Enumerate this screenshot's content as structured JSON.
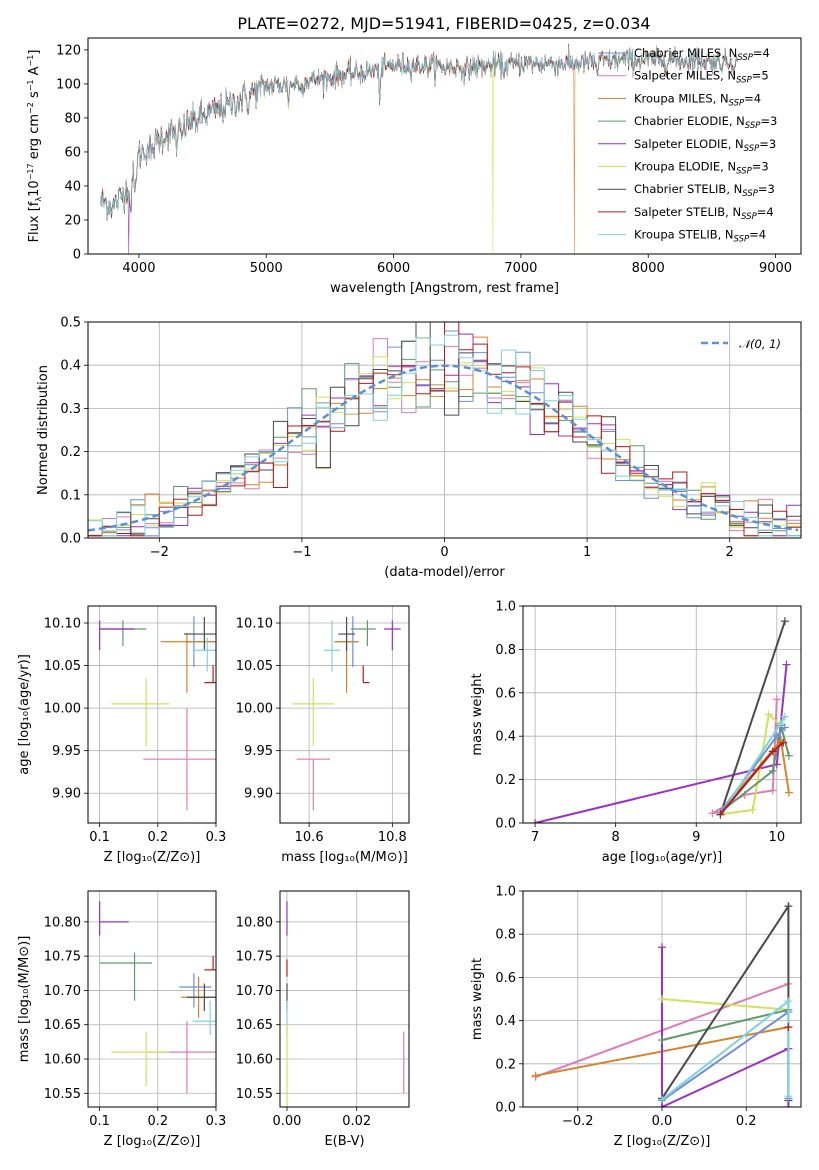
{
  "figure_title": "PLATE=0272, MJD=51941, FIBERID=0425, z=0.034",
  "colors": {
    "chabrier_miles": "#6f8fd8",
    "salpeter_miles": "#e07ab8",
    "kroupa_miles": "#d9822b",
    "chabrier_elodie": "#5f9a6a",
    "salpeter_elodie": "#9b30c2",
    "kroupa_elodie": "#cfe25a",
    "chabrier_stelib": "#4a4a4a",
    "salpeter_stelib": "#b31b1b",
    "kroupa_stelib": "#7fd3e0",
    "normal_curve": "#5b8fd6",
    "grid": "#b0b0b0"
  },
  "chart_data": [
    {
      "id": "spectrum",
      "type": "line",
      "title": "PLATE=0272, MJD=51941, FIBERID=0425, z=0.034",
      "xlabel": "wavelength [Angstrom, rest frame]",
      "ylabel": "Flux [fλ10⁻¹⁷ erg cm⁻² s⁻¹ A⁻¹]",
      "ylabel_parts": {
        "pre": "Flux [f",
        "sub1": "λ",
        "mid": "10",
        "sup1": "−17",
        "mid2": " erg cm",
        "sup2": "−2",
        "mid3": " s",
        "sup3": "−1",
        "mid4": " A",
        "sup4": "−1",
        "post": "]"
      },
      "xlim": [
        3600,
        9200
      ],
      "ylim": [
        0,
        127
      ],
      "xticks": [
        4000,
        5000,
        6000,
        7000,
        8000,
        9000
      ],
      "yticks": [
        0,
        20,
        40,
        60,
        80,
        100,
        120
      ],
      "grid": false,
      "legend_position": "right",
      "continuum": {
        "x": [
          3700,
          3800,
          3900,
          3950,
          4000,
          4100,
          4200,
          4300,
          4400,
          4500,
          4600,
          4800,
          5000,
          5200,
          5400,
          5600,
          5800,
          6000,
          6200,
          6400,
          6600,
          6800,
          7000,
          7200,
          7400,
          7600,
          7800,
          8000,
          8200,
          8400,
          8600,
          8700
        ],
        "y": [
          31,
          28,
          38,
          46,
          58,
          64,
          70,
          72,
          77,
          81,
          84,
          91,
          99,
          100,
          103,
          105,
          107,
          111,
          111,
          110,
          110,
          111,
          112,
          112,
          112,
          113,
          114,
          114,
          114,
          114,
          113,
          113
        ]
      },
      "dropouts": [
        {
          "series": "Salpeter ELODIE",
          "x": 3920
        },
        {
          "series": "Kroupa ELODIE",
          "x": 6780
        },
        {
          "series": "Kroupa MILES",
          "x": 7420
        }
      ],
      "series": [
        {
          "name": "Chabrier MILES",
          "nssp": "4",
          "color": "#6f8fd8"
        },
        {
          "name": "Salpeter MILES",
          "nssp": "5",
          "color": "#e07ab8"
        },
        {
          "name": "Kroupa MILES",
          "nssp": "4",
          "color": "#d9822b"
        },
        {
          "name": "Chabrier ELODIE",
          "nssp": "3",
          "color": "#5f9a6a"
        },
        {
          "name": "Salpeter ELODIE",
          "nssp": "3",
          "color": "#9b30c2"
        },
        {
          "name": "Kroupa ELODIE",
          "nssp": "3",
          "color": "#cfe25a"
        },
        {
          "name": "Chabrier STELIB",
          "nssp": "3",
          "color": "#4a4a4a"
        },
        {
          "name": "Salpeter STELIB",
          "nssp": "4",
          "color": "#b31b1b"
        },
        {
          "name": "Kroupa STELIB",
          "nssp": "4",
          "color": "#7fd3e0"
        }
      ],
      "legend_prefix_N": "N",
      "legend_sub": "SSP"
    },
    {
      "id": "residuals",
      "type": "histogram",
      "xlabel": "(data-model)/error",
      "ylabel": "Normed distribution",
      "xlim": [
        -2.5,
        2.5
      ],
      "ylim": [
        0,
        0.5
      ],
      "xticks": [
        -2,
        -1,
        0,
        1,
        2
      ],
      "yticks": [
        0.0,
        0.1,
        0.2,
        0.3,
        0.4,
        0.5
      ],
      "grid": true,
      "legend": "𝒩(0, 1)",
      "legend_position": "top-right",
      "bin_width": 0.1,
      "normal": {
        "mean": 0,
        "sigma": 1
      }
    },
    {
      "id": "age_vs_Z",
      "type": "errorbar",
      "xlabel": "Z [log₁₀(Z/Z⊙)]",
      "ylabel": "age  [log₁₀(age/yr)]",
      "xlim": [
        0.08,
        0.3
      ],
      "ylim": [
        9.865,
        10.12
      ],
      "xticks": [
        0.1,
        0.2,
        0.3
      ],
      "yticks": [
        9.9,
        9.95,
        10.0,
        10.05,
        10.1
      ],
      "grid": true,
      "points": [
        {
          "series": "Chabrier MILES",
          "x": 0.262,
          "y": 10.078,
          "xerr": [
            0.015,
            0.04
          ],
          "yerr": [
            0.03,
            0.03
          ]
        },
        {
          "series": "Salpeter MILES",
          "x": 0.25,
          "y": 9.94,
          "xerr": [
            0.075,
            0.05
          ],
          "yerr": [
            0.06,
            0.06
          ]
        },
        {
          "series": "Kroupa MILES",
          "x": 0.25,
          "y": 10.078,
          "xerr": [
            0.045,
            0.05
          ],
          "yerr": [
            0.06,
            0.01
          ]
        },
        {
          "series": "Chabrier ELODIE",
          "x": 0.14,
          "y": 10.093,
          "xerr": [
            0.04,
            0.04
          ],
          "yerr": [
            0.02,
            0.01
          ]
        },
        {
          "series": "Salpeter ELODIE",
          "x": 0.1,
          "y": 10.093,
          "xerr": [
            0.0,
            0.06
          ],
          "yerr": [
            0.025,
            0.01
          ]
        },
        {
          "series": "Kroupa ELODIE",
          "x": 0.18,
          "y": 10.005,
          "xerr": [
            0.06,
            0.04
          ],
          "yerr": [
            0.05,
            0.03
          ]
        },
        {
          "series": "Chabrier STELIB",
          "x": 0.28,
          "y": 10.087,
          "xerr": [
            0.035,
            0.02
          ],
          "yerr": [
            0.02,
            0.02
          ]
        },
        {
          "series": "Salpeter STELIB",
          "x": 0.295,
          "y": 10.03,
          "xerr": [
            0.015,
            0.005
          ],
          "yerr": [
            0.0,
            0.02
          ]
        },
        {
          "series": "Kroupa STELIB",
          "x": 0.285,
          "y": 10.068,
          "xerr": [
            0.025,
            0.015
          ],
          "yerr": [
            0.025,
            0.015
          ]
        }
      ]
    },
    {
      "id": "age_vs_mass",
      "type": "errorbar",
      "xlabel": "mass [log₁₀(M/M⊙)]",
      "ylabel": "",
      "xlim": [
        10.53,
        10.84
      ],
      "ylim": [
        9.865,
        10.12
      ],
      "xticks": [
        10.6,
        10.8
      ],
      "yticks": [
        9.9,
        9.95,
        10.0,
        10.05,
        10.1
      ],
      "grid": true,
      "points": [
        {
          "series": "Chabrier MILES",
          "x": 10.705,
          "y": 10.078,
          "xerr": [
            0.04,
            0.01
          ],
          "yerr": [
            0.03,
            0.03
          ]
        },
        {
          "series": "Salpeter MILES",
          "x": 10.61,
          "y": 9.94,
          "xerr": [
            0.04,
            0.04
          ],
          "yerr": [
            0.06,
            0.0
          ]
        },
        {
          "series": "Kroupa MILES",
          "x": 10.69,
          "y": 10.078,
          "xerr": [
            0.03,
            0.03
          ],
          "yerr": [
            0.06,
            0.01
          ]
        },
        {
          "series": "Chabrier ELODIE",
          "x": 10.74,
          "y": 10.093,
          "xerr": [
            0.04,
            0.02
          ],
          "yerr": [
            0.02,
            0.01
          ]
        },
        {
          "series": "Salpeter ELODIE",
          "x": 10.8,
          "y": 10.093,
          "xerr": [
            0.02,
            0.02
          ],
          "yerr": [
            0.025,
            0.01
          ]
        },
        {
          "series": "Kroupa ELODIE",
          "x": 10.61,
          "y": 10.005,
          "xerr": [
            0.05,
            0.05
          ],
          "yerr": [
            0.05,
            0.03
          ]
        },
        {
          "series": "Chabrier STELIB",
          "x": 10.69,
          "y": 10.087,
          "xerr": [
            0.02,
            0.02
          ],
          "yerr": [
            0.02,
            0.02
          ]
        },
        {
          "series": "Salpeter STELIB",
          "x": 10.73,
          "y": 10.03,
          "xerr": [
            0.0,
            0.015
          ],
          "yerr": [
            0.0,
            0.02
          ]
        },
        {
          "series": "Kroupa STELIB",
          "x": 10.655,
          "y": 10.068,
          "xerr": [
            0.02,
            0.02
          ],
          "yerr": [
            0.025,
            0.035
          ]
        }
      ]
    },
    {
      "id": "massweight_vs_age",
      "type": "line",
      "xlabel": "age  [log₁₀(age/yr)]",
      "ylabel": "mass weight",
      "xlim": [
        6.85,
        10.3
      ],
      "ylim": [
        0,
        1.0
      ],
      "xticks": [
        7,
        8,
        9,
        10
      ],
      "yticks": [
        0.0,
        0.2,
        0.4,
        0.6,
        0.8,
        1.0
      ],
      "grid": true,
      "series": [
        {
          "name": "Salpeter ELODIE",
          "x": [
            7.0,
            10.0,
            10.12
          ],
          "y": [
            0.0,
            0.27,
            0.73
          ]
        },
        {
          "name": "Chabrier STELIB",
          "x": [
            9.3,
            10.1
          ],
          "y": [
            0.04,
            0.93
          ]
        },
        {
          "name": "Salpeter MILES",
          "x": [
            9.2,
            9.6,
            9.95,
            10.0
          ],
          "y": [
            0.045,
            0.13,
            0.15,
            0.57
          ]
        },
        {
          "name": "Kroupa ELODIE",
          "x": [
            9.3,
            9.7,
            9.9,
            10.05
          ],
          "y": [
            0.04,
            0.06,
            0.5,
            0.45
          ]
        },
        {
          "name": "Chabrier ELODIE",
          "x": [
            9.3,
            9.95,
            10.05,
            10.15
          ],
          "y": [
            0.05,
            0.24,
            0.45,
            0.31
          ]
        },
        {
          "name": "Kroupa MILES",
          "x": [
            9.3,
            10.05,
            10.15
          ],
          "y": [
            0.05,
            0.38,
            0.14
          ]
        },
        {
          "name": "Chabrier MILES",
          "x": [
            9.3,
            10.0,
            10.1
          ],
          "y": [
            0.05,
            0.4,
            0.44
          ]
        },
        {
          "name": "Kroupa STELIB",
          "x": [
            9.3,
            10.05,
            10.1
          ],
          "y": [
            0.035,
            0.46,
            0.49
          ]
        },
        {
          "name": "Salpeter STELIB",
          "x": [
            9.3,
            9.95,
            10.08
          ],
          "y": [
            0.04,
            0.33,
            0.37
          ]
        }
      ]
    },
    {
      "id": "mass_vs_Z",
      "type": "errorbar",
      "xlabel": "Z [log₁₀(Z/Z⊙)]",
      "ylabel": "mass [log₁₀(M/M⊙)]",
      "xlim": [
        0.08,
        0.3
      ],
      "ylim": [
        10.53,
        10.845
      ],
      "xticks": [
        0.1,
        0.2,
        0.3
      ],
      "yticks": [
        10.55,
        10.6,
        10.65,
        10.7,
        10.75,
        10.8
      ],
      "grid": true,
      "points": [
        {
          "series": "Chabrier MILES",
          "x": 0.262,
          "y": 10.705,
          "xerr": [
            0.025,
            0.03
          ],
          "yerr": [
            0.03,
            0.02
          ]
        },
        {
          "series": "Salpeter MILES",
          "x": 0.25,
          "y": 10.61,
          "xerr": [
            0.07,
            0.05
          ],
          "yerr": [
            0.06,
            0.045
          ]
        },
        {
          "series": "Kroupa MILES",
          "x": 0.27,
          "y": 10.69,
          "xerr": [
            0.03,
            0.03
          ],
          "yerr": [
            0.03,
            0.03
          ]
        },
        {
          "series": "Chabrier ELODIE",
          "x": 0.16,
          "y": 10.74,
          "xerr": [
            0.06,
            0.03
          ],
          "yerr": [
            0.055,
            0.015
          ]
        },
        {
          "series": "Salpeter ELODIE",
          "x": 0.1,
          "y": 10.8,
          "xerr": [
            0.0,
            0.05
          ],
          "yerr": [
            0.02,
            0.03
          ]
        },
        {
          "series": "Kroupa ELODIE",
          "x": 0.18,
          "y": 10.61,
          "xerr": [
            0.06,
            0.04
          ],
          "yerr": [
            0.05,
            0.03
          ]
        },
        {
          "series": "Chabrier STELIB",
          "x": 0.28,
          "y": 10.69,
          "xerr": [
            0.03,
            0.02
          ],
          "yerr": [
            0.02,
            0.02
          ]
        },
        {
          "series": "Salpeter STELIB",
          "x": 0.295,
          "y": 10.73,
          "xerr": [
            0.015,
            0.005
          ],
          "yerr": [
            0.0,
            0.02
          ]
        },
        {
          "series": "Kroupa STELIB",
          "x": 0.29,
          "y": 10.655,
          "xerr": [
            0.03,
            0.015
          ],
          "yerr": [
            0.02,
            0.03
          ]
        }
      ]
    },
    {
      "id": "mass_vs_ebv",
      "type": "errorbar",
      "xlabel": "E(B-V)",
      "ylabel": "",
      "xlim": [
        -0.002,
        0.035
      ],
      "ylim": [
        10.53,
        10.845
      ],
      "xticks": [
        0.0,
        0.02
      ],
      "yticks": [
        10.55,
        10.6,
        10.65,
        10.7,
        10.75,
        10.8
      ],
      "grid": true,
      "points": [
        {
          "series": "Salpeter MILES",
          "x": 0.0335,
          "y": 10.595,
          "xerr": [
            0,
            0
          ],
          "yerr": [
            0.045,
            0.045
          ]
        },
        {
          "series": "Salpeter ELODIE",
          "x": 0.0,
          "y": 10.8,
          "xerr": [
            0,
            0
          ],
          "yerr": [
            0.02,
            0.03
          ]
        },
        {
          "series": "Salpeter STELIB",
          "x": 0.0,
          "y": 10.73,
          "xerr": [
            0,
            0
          ],
          "yerr": [
            0.01,
            0.015
          ]
        },
        {
          "series": "Chabrier STELIB",
          "x": 0.0,
          "y": 10.69,
          "xerr": [
            0,
            0
          ],
          "yerr": [
            0.02,
            0.02
          ]
        },
        {
          "series": "Kroupa STELIB",
          "x": 0.0,
          "y": 10.655,
          "xerr": [
            0,
            0
          ],
          "yerr": [
            0.02,
            0.03
          ]
        },
        {
          "series": "Kroupa ELODIE",
          "x": 0.0,
          "y": 10.59,
          "xerr": [
            0,
            0
          ],
          "yerr": [
            0.06,
            0.06
          ]
        }
      ]
    },
    {
      "id": "massweight_vs_Z",
      "type": "line",
      "xlabel": "Z [log₁₀(Z/Z⊙)]",
      "ylabel": "mass weight",
      "xlim": [
        -0.33,
        0.33
      ],
      "ylim": [
        0,
        1.0
      ],
      "xticks": [
        -0.2,
        0.0,
        0.2
      ],
      "yticks": [
        0.0,
        0.2,
        0.4,
        0.6,
        0.8,
        1.0
      ],
      "grid": true,
      "series": [
        {
          "name": "Salpeter MILES",
          "x": [
            -0.3,
            0.3
          ],
          "y": [
            0.14,
            0.57
          ]
        },
        {
          "name": "Kroupa MILES",
          "x": [
            -0.3,
            0.3
          ],
          "y": [
            0.145,
            0.37
          ]
        },
        {
          "name": "Salpeter ELODIE",
          "x": [
            0.0,
            0.0,
            0.3,
            0.3
          ],
          "y": [
            0.74,
            0.0,
            0.27,
            0.0
          ]
        },
        {
          "name": "Kroupa ELODIE",
          "x": [
            0.0,
            0.3
          ],
          "y": [
            0.5,
            0.45
          ]
        },
        {
          "name": "Chabrier ELODIE",
          "x": [
            0.0,
            0.3
          ],
          "y": [
            0.31,
            0.45
          ]
        },
        {
          "name": "Chabrier STELIB",
          "x": [
            0.0,
            0.3,
            0.3
          ],
          "y": [
            0.04,
            0.93,
            0.03
          ]
        },
        {
          "name": "Chabrier MILES",
          "x": [
            0.0,
            0.3,
            0.3
          ],
          "y": [
            0.03,
            0.44,
            0.04
          ]
        },
        {
          "name": "Kroupa STELIB",
          "x": [
            0.0,
            0.3,
            0.3
          ],
          "y": [
            0.035,
            0.49,
            0.05
          ]
        },
        {
          "name": "Salpeter STELIB",
          "x": [
            0.3
          ],
          "y": [
            0.37
          ]
        }
      ]
    }
  ]
}
